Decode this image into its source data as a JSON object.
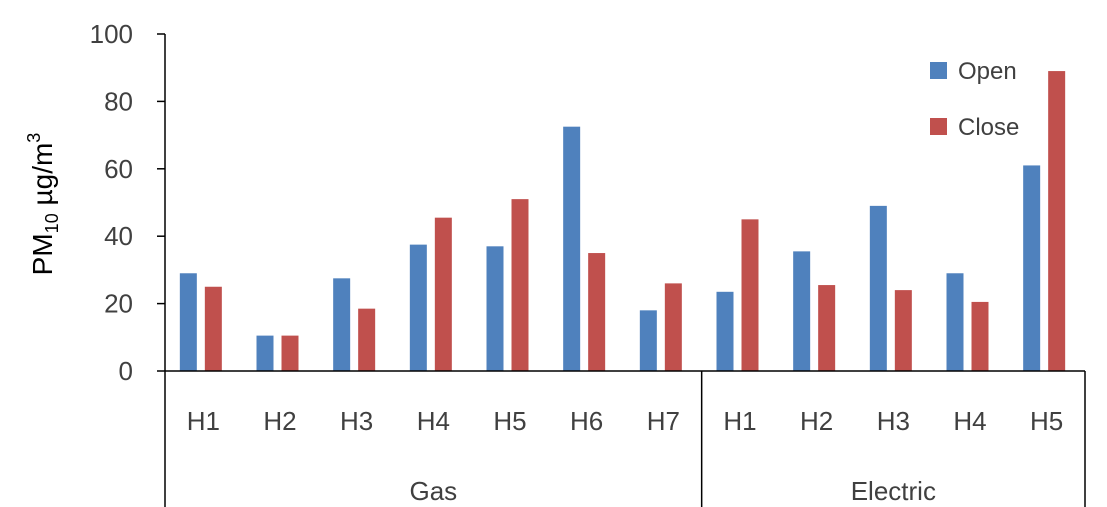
{
  "chart_data": {
    "type": "bar",
    "ylabel_main": "PM",
    "ylabel_sub": "10",
    "ylabel_unit": " µg/m",
    "ylabel_sup": "3",
    "ylim": [
      0,
      100
    ],
    "yticks": [
      0,
      20,
      40,
      60,
      80,
      100
    ],
    "grid": false,
    "legend_position": "top-right",
    "groups": [
      {
        "name": "Gas",
        "categories": [
          "H1",
          "H2",
          "H3",
          "H4",
          "H5",
          "H6",
          "H7"
        ]
      },
      {
        "name": "Electric",
        "categories": [
          "H1",
          "H2",
          "H3",
          "H4",
          "H5"
        ]
      }
    ],
    "categories": [
      "H1",
      "H2",
      "H3",
      "H4",
      "H5",
      "H6",
      "H7",
      "H1",
      "H2",
      "H3",
      "H4",
      "H5"
    ],
    "series": [
      {
        "name": "Open",
        "color": "#4F81BD",
        "values": [
          29,
          10.5,
          27.5,
          37.5,
          37,
          72.5,
          18,
          23.5,
          35.5,
          49,
          29,
          61
        ]
      },
      {
        "name": "Close",
        "color": "#C0504D",
        "values": [
          25,
          10.5,
          18.5,
          45.5,
          51,
          35,
          26,
          45,
          25.5,
          24,
          20.5,
          89
        ]
      }
    ]
  }
}
